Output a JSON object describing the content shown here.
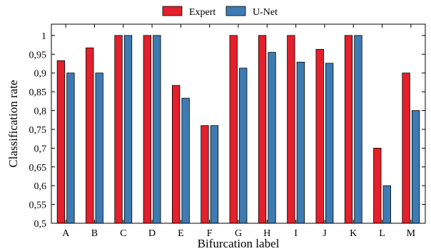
{
  "chart_data": {
    "type": "bar",
    "title": "",
    "xlabel": "Bifurcation label",
    "ylabel": "Classification rate",
    "categories": [
      "A",
      "B",
      "C",
      "D",
      "E",
      "F",
      "G",
      "H",
      "I",
      "J",
      "K",
      "L",
      "M"
    ],
    "series": [
      {
        "name": "Expert",
        "color": "#e3202b",
        "values": [
          0.933,
          0.967,
          1.0,
          1.0,
          0.867,
          0.76,
          1.0,
          1.0,
          1.0,
          0.963,
          1.0,
          0.7,
          0.9
        ]
      },
      {
        "name": "U-Net",
        "color": "#3e7bb3",
        "values": [
          0.9,
          0.9,
          1.0,
          1.0,
          0.833,
          0.76,
          0.913,
          0.955,
          0.929,
          0.926,
          1.0,
          0.6,
          0.8
        ]
      }
    ],
    "ylim": [
      0.5,
      1.03
    ],
    "yticks": [
      "0,5",
      "0,55",
      "0,6",
      "0,65",
      "0,7",
      "0,75",
      "0,8",
      "0,85",
      "0,9",
      "0,95",
      "1"
    ],
    "ytick_values": [
      0.5,
      0.55,
      0.6,
      0.65,
      0.7,
      0.75,
      0.8,
      0.85,
      0.9,
      0.95,
      1.0
    ],
    "legend_position": "top-center",
    "grid": false
  }
}
